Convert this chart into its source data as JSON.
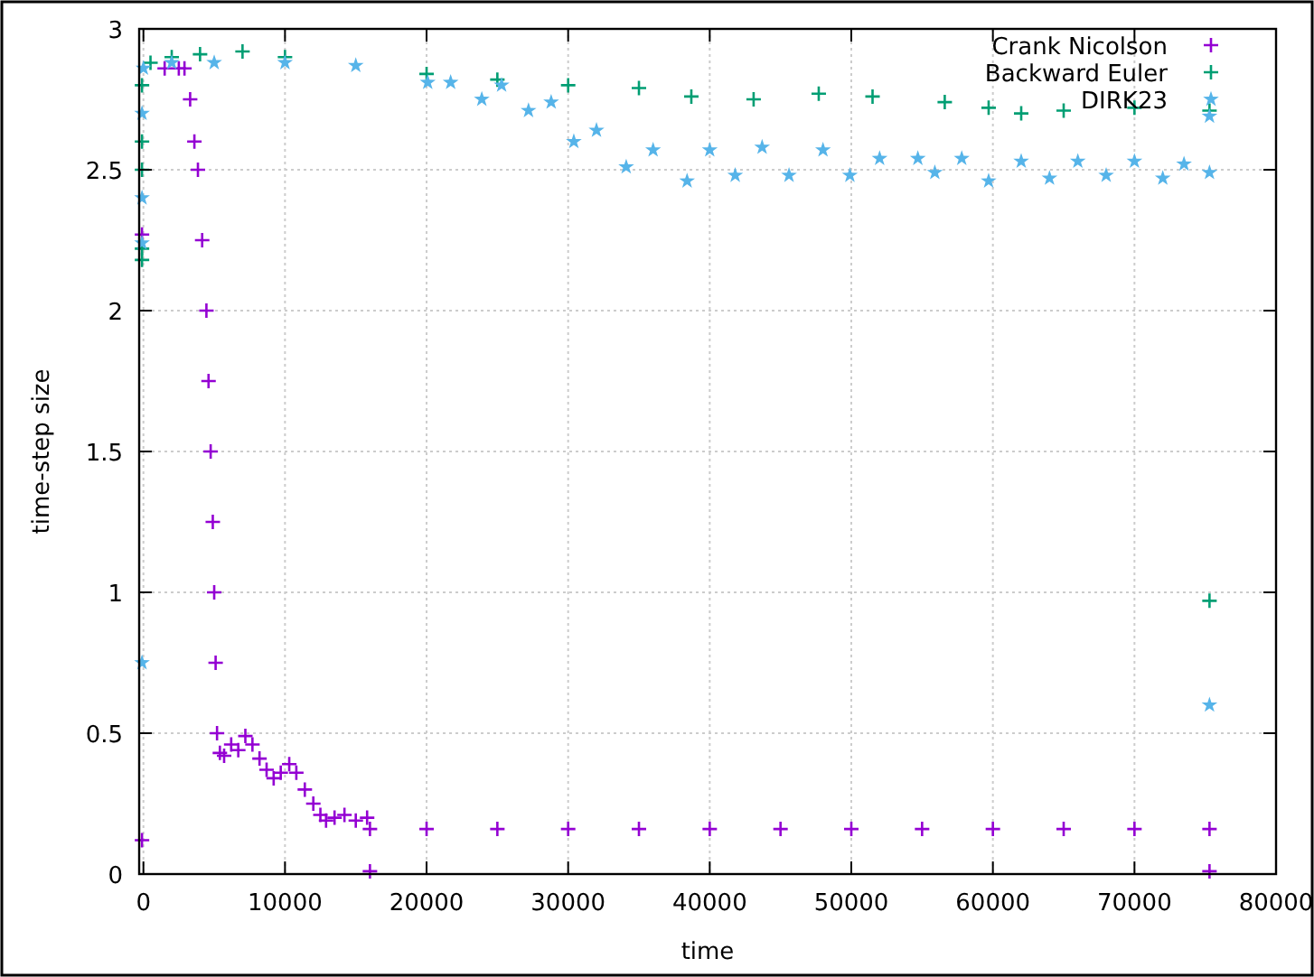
{
  "chart_data": {
    "type": "scatter",
    "xlabel": "time",
    "ylabel": "time-step size",
    "xlim": [
      -300,
      80000
    ],
    "ylim": [
      0,
      3
    ],
    "xticks": [
      0,
      10000,
      20000,
      30000,
      40000,
      50000,
      60000,
      70000,
      80000
    ],
    "yticks": [
      0,
      0.5,
      1,
      1.5,
      2,
      2.5,
      3
    ],
    "grid": true,
    "legend": "top right",
    "series": [
      {
        "name": "Crank Nicolson",
        "color": "#9400d3",
        "marker": "cross",
        "x": [
          -100,
          -100,
          1500,
          2500,
          2900,
          3300,
          3600,
          3850,
          4150,
          4450,
          4600,
          4750,
          4900,
          5000,
          5100,
          5200,
          5400,
          5700,
          6200,
          6700,
          7200,
          7700,
          8200,
          8700,
          9200,
          9700,
          10300,
          10800,
          11400,
          12000,
          12500,
          12900,
          13500,
          14200,
          15000,
          15800,
          16000,
          16000,
          20000,
          25000,
          30000,
          35000,
          40000,
          45000,
          50000,
          55000,
          60000,
          65000,
          70000,
          75300,
          75300
        ],
        "values": [
          0.12,
          2.27,
          2.86,
          2.86,
          2.86,
          2.75,
          2.6,
          2.5,
          2.25,
          2,
          1.75,
          1.5,
          1.25,
          1,
          0.75,
          0.5,
          0.43,
          0.42,
          0.46,
          0.44,
          0.49,
          0.46,
          0.41,
          0.37,
          0.34,
          0.36,
          0.39,
          0.36,
          0.3,
          0.25,
          0.21,
          0.19,
          0.2,
          0.21,
          0.19,
          0.2,
          0.16,
          0.01,
          0.16,
          0.16,
          0.16,
          0.16,
          0.16,
          0.16,
          0.16,
          0.16,
          0.16,
          0.16,
          0.16,
          0.16,
          0.01
        ]
      },
      {
        "name": "Backward Euler",
        "color": "#009e73",
        "marker": "cross",
        "x": [
          -100,
          -100,
          -100,
          -100,
          -100,
          500,
          2000,
          4000,
          7000,
          10000,
          20000,
          25000,
          30000,
          35000,
          38700,
          43100,
          47700,
          51500,
          56600,
          59700,
          62000,
          65000,
          70000,
          75300,
          75300
        ],
        "values": [
          2.18,
          2.22,
          2.5,
          2.6,
          2.8,
          2.88,
          2.9,
          2.91,
          2.92,
          2.9,
          2.84,
          2.82,
          2.8,
          2.79,
          2.76,
          2.75,
          2.77,
          2.76,
          2.74,
          2.72,
          2.7,
          2.71,
          2.72,
          2.71,
          0.97
        ]
      },
      {
        "name": "DIRK23",
        "color": "#56b4e9",
        "marker": "star",
        "x": [
          -100,
          -100,
          -100,
          -100,
          0,
          2000,
          5000,
          10000,
          15000,
          20080,
          21700,
          23900,
          25300,
          27200,
          28800,
          30400,
          32000,
          34100,
          36000,
          38400,
          40000,
          41800,
          43700,
          45600,
          48000,
          49900,
          52000,
          54700,
          55900,
          57800,
          59700,
          62000,
          64000,
          66000,
          68000,
          70000,
          72000,
          73500,
          75300,
          75300,
          75300
        ],
        "values": [
          0.75,
          2.24,
          2.4,
          2.7,
          2.86,
          2.88,
          2.88,
          2.88,
          2.87,
          2.81,
          2.81,
          2.75,
          2.8,
          2.71,
          2.74,
          2.6,
          2.64,
          2.51,
          2.57,
          2.46,
          2.57,
          2.48,
          2.58,
          2.48,
          2.57,
          2.48,
          2.54,
          2.54,
          2.49,
          2.54,
          2.46,
          2.53,
          2.47,
          2.53,
          2.48,
          2.53,
          2.47,
          2.52,
          2.49,
          2.69,
          0.6
        ]
      }
    ]
  }
}
